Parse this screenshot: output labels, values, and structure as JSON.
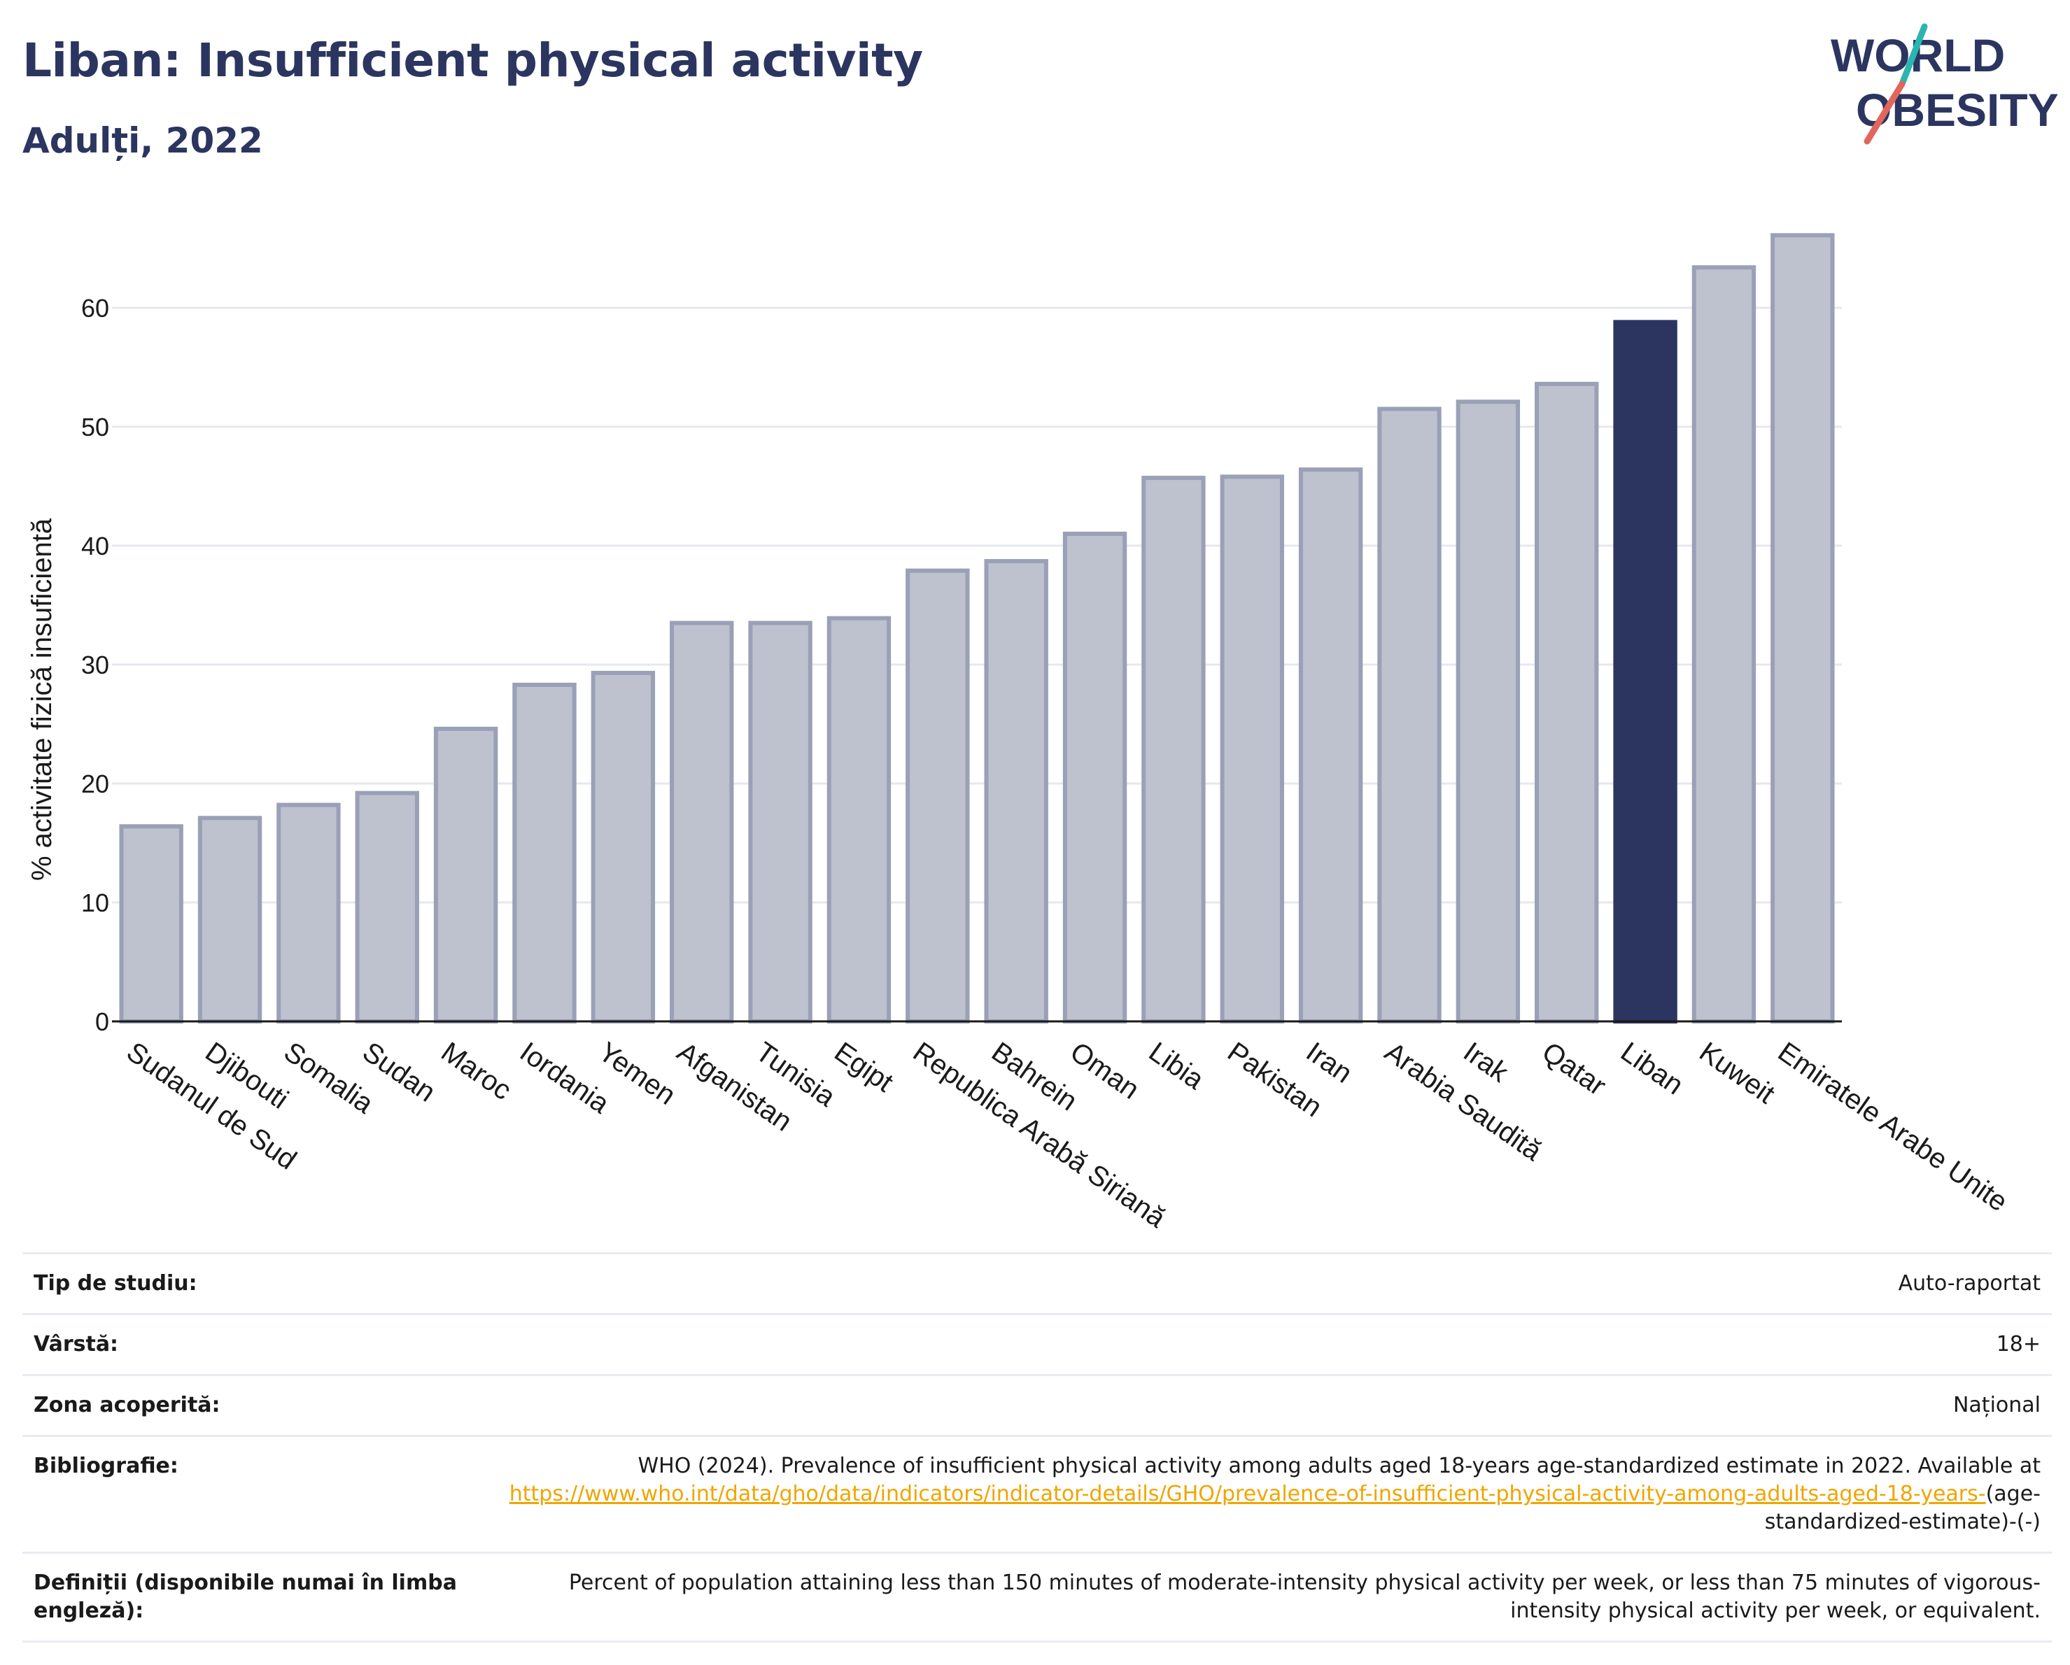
{
  "header": {
    "title": "Liban: Insufficient physical activity",
    "subtitle": "Adulți, 2022"
  },
  "logo": {
    "line1": "WORLD",
    "line2": "OBESITY",
    "slash_top_color": "#2bb5b0",
    "slash_bottom_color": "#e3655b"
  },
  "colors": {
    "bar": "#bec1ce",
    "bar_border": "#9aa0b6",
    "highlight": "#2b3560",
    "grid": "#e6e8ef",
    "text": "#1a1a1a"
  },
  "chart_data": {
    "type": "bar",
    "title": "Liban: Insufficient physical activity",
    "subtitle": "Adulți, 2022",
    "xlabel": "",
    "ylabel": "% activitate fizică insuficientă",
    "ylim": [
      0,
      70
    ],
    "yticks": [
      0,
      10,
      20,
      30,
      40,
      50,
      60
    ],
    "grid": true,
    "highlight": "Liban",
    "categories": [
      "Sudanul de Sud",
      "Djibouti",
      "Somalia",
      "Sudan",
      "Maroc",
      "Iordania",
      "Yemen",
      "Afganistan",
      "Tunisia",
      "Egipt",
      "Republica Arabă Siriană",
      "Bahrein",
      "Oman",
      "Libia",
      "Pakistan",
      "Iran",
      "Arabia Saudită",
      "Irak",
      "Qatar",
      "Liban",
      "Kuweit",
      "Emiratele Arabe Unite"
    ],
    "values": [
      16.4,
      17.1,
      18.2,
      19.2,
      24.6,
      28.3,
      29.3,
      33.5,
      33.5,
      33.9,
      37.9,
      38.7,
      41.0,
      45.7,
      45.8,
      46.4,
      51.5,
      52.1,
      53.6,
      58.8,
      63.4,
      66.1
    ]
  },
  "info": {
    "rows": [
      {
        "label": "Tip de studiu:",
        "value": "Auto-raportat"
      },
      {
        "label": "Vârstă:",
        "value": "18+"
      },
      {
        "label": "Zona acoperită:",
        "value": "Național"
      }
    ],
    "biblio_label": "Bibliografie:",
    "biblio_text": "WHO (2024). Prevalence of insufficient physical activity among adults aged 18-years age-standardized estimate in 2022. Available at",
    "biblio_link": "https://www.who.int/data/gho/data/indicators/indicator-details/GHO/prevalence-of-insufficient-physical-activity-among-adults-aged-18-years-",
    "biblio_tail": "(age-standardized-estimate)-(-)",
    "def_label": "Definiții (disponibile numai în limba engleză):",
    "def_text": "Percent of population attaining less than 150 minutes of moderate-intensity physical activity per week, or less than 75 minutes of vigorous-intensity physical activity per week, or equivalent."
  }
}
